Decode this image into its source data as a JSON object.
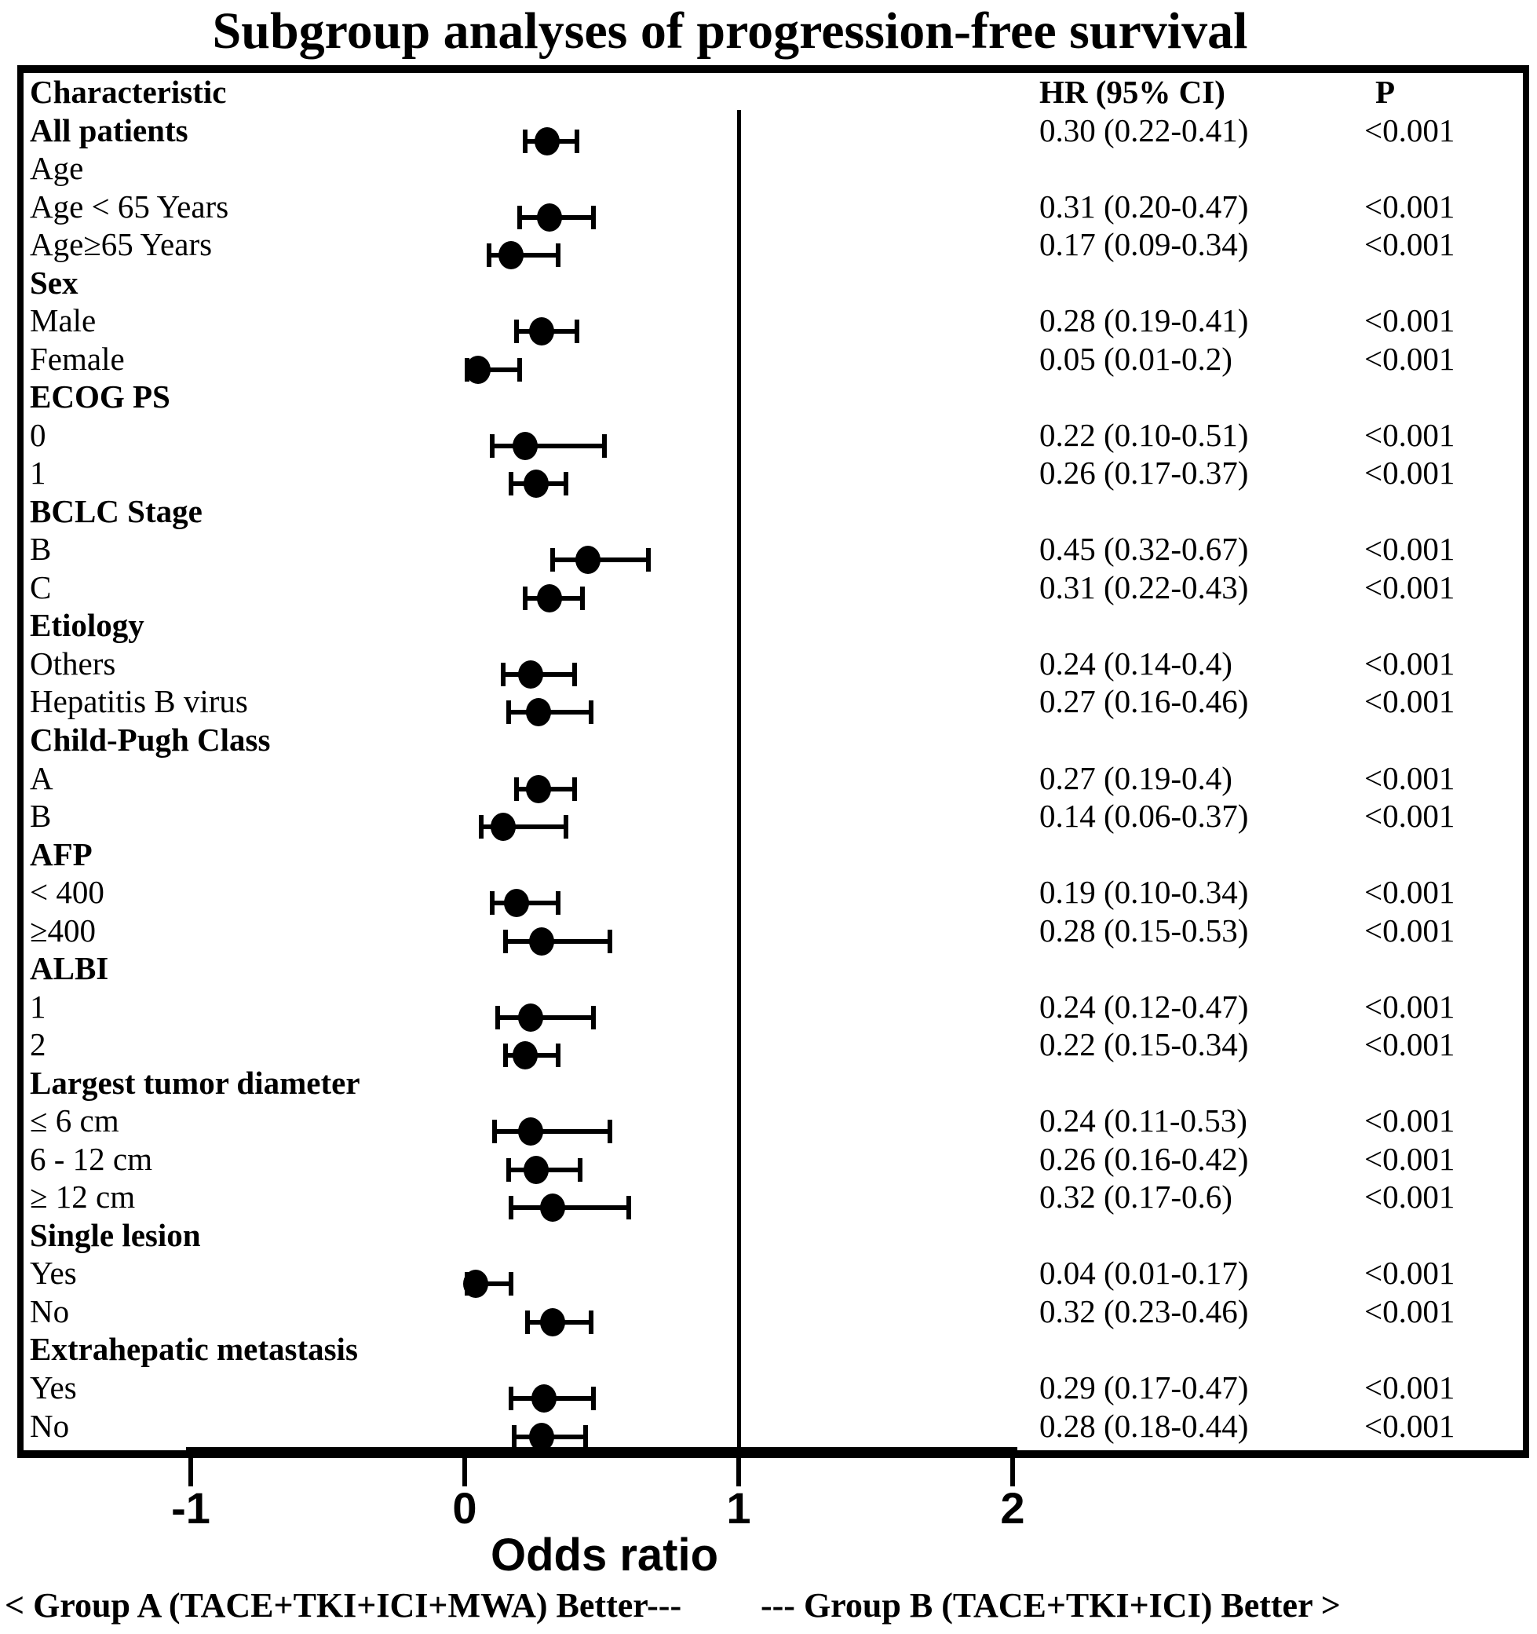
{
  "title": "Subgroup analyses of progression-free survival",
  "table": {
    "col_characteristic": "Characteristic",
    "col_hr": "HR (95% CI)",
    "col_p": "P"
  },
  "axis": {
    "label": "Odds ratio",
    "ticks": [
      -1,
      0,
      1,
      2
    ],
    "reference_line": 1
  },
  "footer": {
    "left": "< Group A (TACE+TKI+ICI+MWA) Better---",
    "right": "--- Group B (TACE+TKI+ICI) Better >"
  },
  "colors": {
    "foreground": "#000000",
    "background": "#ffffff"
  },
  "chart_data": {
    "type": "forest",
    "title": "Subgroup analyses of progression-free survival",
    "xlabel": "Odds ratio",
    "x_ticks": [
      -1,
      0,
      1,
      2
    ],
    "xlim": [
      -1.6,
      2.9
    ],
    "reference_line": 1,
    "marker": "filled-circle",
    "columns": [
      "Characteristic",
      "HR (95% CI)",
      "P"
    ],
    "rows": [
      {
        "kind": "header",
        "label": "Characteristic",
        "bold": true
      },
      {
        "kind": "data",
        "label": "All patients",
        "bold": true,
        "hr": 0.3,
        "lo": 0.22,
        "hi": 0.41,
        "hr_text": "0.30 (0.22-0.41)",
        "p": "<0.001"
      },
      {
        "kind": "group",
        "label": "Age",
        "bold": false
      },
      {
        "kind": "data",
        "label": "Age < 65 Years",
        "bold": false,
        "hr": 0.31,
        "lo": 0.2,
        "hi": 0.47,
        "hr_text": "0.31 (0.20-0.47)",
        "p": "<0.001"
      },
      {
        "kind": "data",
        "label": "Age≥65 Years",
        "bold": false,
        "hr": 0.17,
        "lo": 0.09,
        "hi": 0.34,
        "hr_text": "0.17 (0.09-0.34)",
        "p": "<0.001"
      },
      {
        "kind": "group",
        "label": "Sex",
        "bold": true
      },
      {
        "kind": "data",
        "label": "Male",
        "bold": false,
        "hr": 0.28,
        "lo": 0.19,
        "hi": 0.41,
        "hr_text": "0.28 (0.19-0.41)",
        "p": "<0.001"
      },
      {
        "kind": "data",
        "label": "Female",
        "bold": false,
        "hr": 0.05,
        "lo": 0.01,
        "hi": 0.2,
        "hr_text": "0.05 (0.01-0.2)",
        "p": "<0.001"
      },
      {
        "kind": "group",
        "label": "ECOG PS",
        "bold": true
      },
      {
        "kind": "data",
        "label": "0",
        "bold": false,
        "hr": 0.22,
        "lo": 0.1,
        "hi": 0.51,
        "hr_text": "0.22 (0.10-0.51)",
        "p": "<0.001"
      },
      {
        "kind": "data",
        "label": "1",
        "bold": false,
        "hr": 0.26,
        "lo": 0.17,
        "hi": 0.37,
        "hr_text": "0.26 (0.17-0.37)",
        "p": "<0.001"
      },
      {
        "kind": "group",
        "label": "BCLC Stage",
        "bold": true
      },
      {
        "kind": "data",
        "label": "B",
        "bold": false,
        "hr": 0.45,
        "lo": 0.32,
        "hi": 0.67,
        "hr_text": "0.45 (0.32-0.67)",
        "p": "<0.001"
      },
      {
        "kind": "data",
        "label": "C",
        "bold": false,
        "hr": 0.31,
        "lo": 0.22,
        "hi": 0.43,
        "hr_text": "0.31 (0.22-0.43)",
        "p": "<0.001"
      },
      {
        "kind": "group",
        "label": "Etiology",
        "bold": true
      },
      {
        "kind": "data",
        "label": "Others",
        "bold": false,
        "hr": 0.24,
        "lo": 0.14,
        "hi": 0.4,
        "hr_text": "0.24 (0.14-0.4)",
        "p": "<0.001"
      },
      {
        "kind": "data",
        "label": "Hepatitis B virus",
        "bold": false,
        "hr": 0.27,
        "lo": 0.16,
        "hi": 0.46,
        "hr_text": "0.27 (0.16-0.46)",
        "p": "<0.001"
      },
      {
        "kind": "group",
        "label": "Child-Pugh Class",
        "bold": true
      },
      {
        "kind": "data",
        "label": "A",
        "bold": false,
        "hr": 0.27,
        "lo": 0.19,
        "hi": 0.4,
        "hr_text": "0.27 (0.19-0.4)",
        "p": "<0.001"
      },
      {
        "kind": "data",
        "label": "B",
        "bold": false,
        "hr": 0.14,
        "lo": 0.06,
        "hi": 0.37,
        "hr_text": "0.14 (0.06-0.37)",
        "p": "<0.001"
      },
      {
        "kind": "group",
        "label": "AFP",
        "bold": true
      },
      {
        "kind": "data",
        "label": "< 400",
        "bold": false,
        "hr": 0.19,
        "lo": 0.1,
        "hi": 0.34,
        "hr_text": "0.19 (0.10-0.34)",
        "p": "<0.001"
      },
      {
        "kind": "data",
        "label": "≥400",
        "bold": false,
        "hr": 0.28,
        "lo": 0.15,
        "hi": 0.53,
        "hr_text": "0.28 (0.15-0.53)",
        "p": "<0.001"
      },
      {
        "kind": "group",
        "label": "ALBI",
        "bold": true
      },
      {
        "kind": "data",
        "label": "1",
        "bold": false,
        "hr": 0.24,
        "lo": 0.12,
        "hi": 0.47,
        "hr_text": "0.24 (0.12-0.47)",
        "p": "<0.001"
      },
      {
        "kind": "data",
        "label": "2",
        "bold": false,
        "hr": 0.22,
        "lo": 0.15,
        "hi": 0.34,
        "hr_text": "0.22 (0.15-0.34)",
        "p": "<0.001"
      },
      {
        "kind": "group",
        "label": "Largest tumor diameter",
        "bold": true
      },
      {
        "kind": "data",
        "label": "≤ 6 cm",
        "bold": false,
        "hr": 0.24,
        "lo": 0.11,
        "hi": 0.53,
        "hr_text": "0.24 (0.11-0.53)",
        "p": "<0.001"
      },
      {
        "kind": "data",
        "label": "6 - 12 cm",
        "bold": false,
        "hr": 0.26,
        "lo": 0.16,
        "hi": 0.42,
        "hr_text": "0.26 (0.16-0.42)",
        "p": "<0.001"
      },
      {
        "kind": "data",
        "label": "≥ 12 cm",
        "bold": false,
        "hr": 0.32,
        "lo": 0.17,
        "hi": 0.6,
        "hr_text": "0.32 (0.17-0.6)",
        "p": "<0.001"
      },
      {
        "kind": "group",
        "label": "Single lesion",
        "bold": true
      },
      {
        "kind": "data",
        "label": "Yes",
        "bold": false,
        "hr": 0.04,
        "lo": 0.01,
        "hi": 0.17,
        "hr_text": "0.04 (0.01-0.17)",
        "p": "<0.001"
      },
      {
        "kind": "data",
        "label": "No",
        "bold": false,
        "hr": 0.32,
        "lo": 0.23,
        "hi": 0.46,
        "hr_text": "0.32 (0.23-0.46)",
        "p": "<0.001"
      },
      {
        "kind": "group",
        "label": "Extrahepatic metastasis",
        "bold": true
      },
      {
        "kind": "data",
        "label": "Yes",
        "bold": false,
        "hr": 0.29,
        "lo": 0.17,
        "hi": 0.47,
        "hr_text": "0.29 (0.17-0.47)",
        "p": "<0.001"
      },
      {
        "kind": "data",
        "label": "No",
        "bold": false,
        "hr": 0.28,
        "lo": 0.18,
        "hi": 0.44,
        "hr_text": "0.28 (0.18-0.44)",
        "p": "<0.001"
      }
    ]
  }
}
